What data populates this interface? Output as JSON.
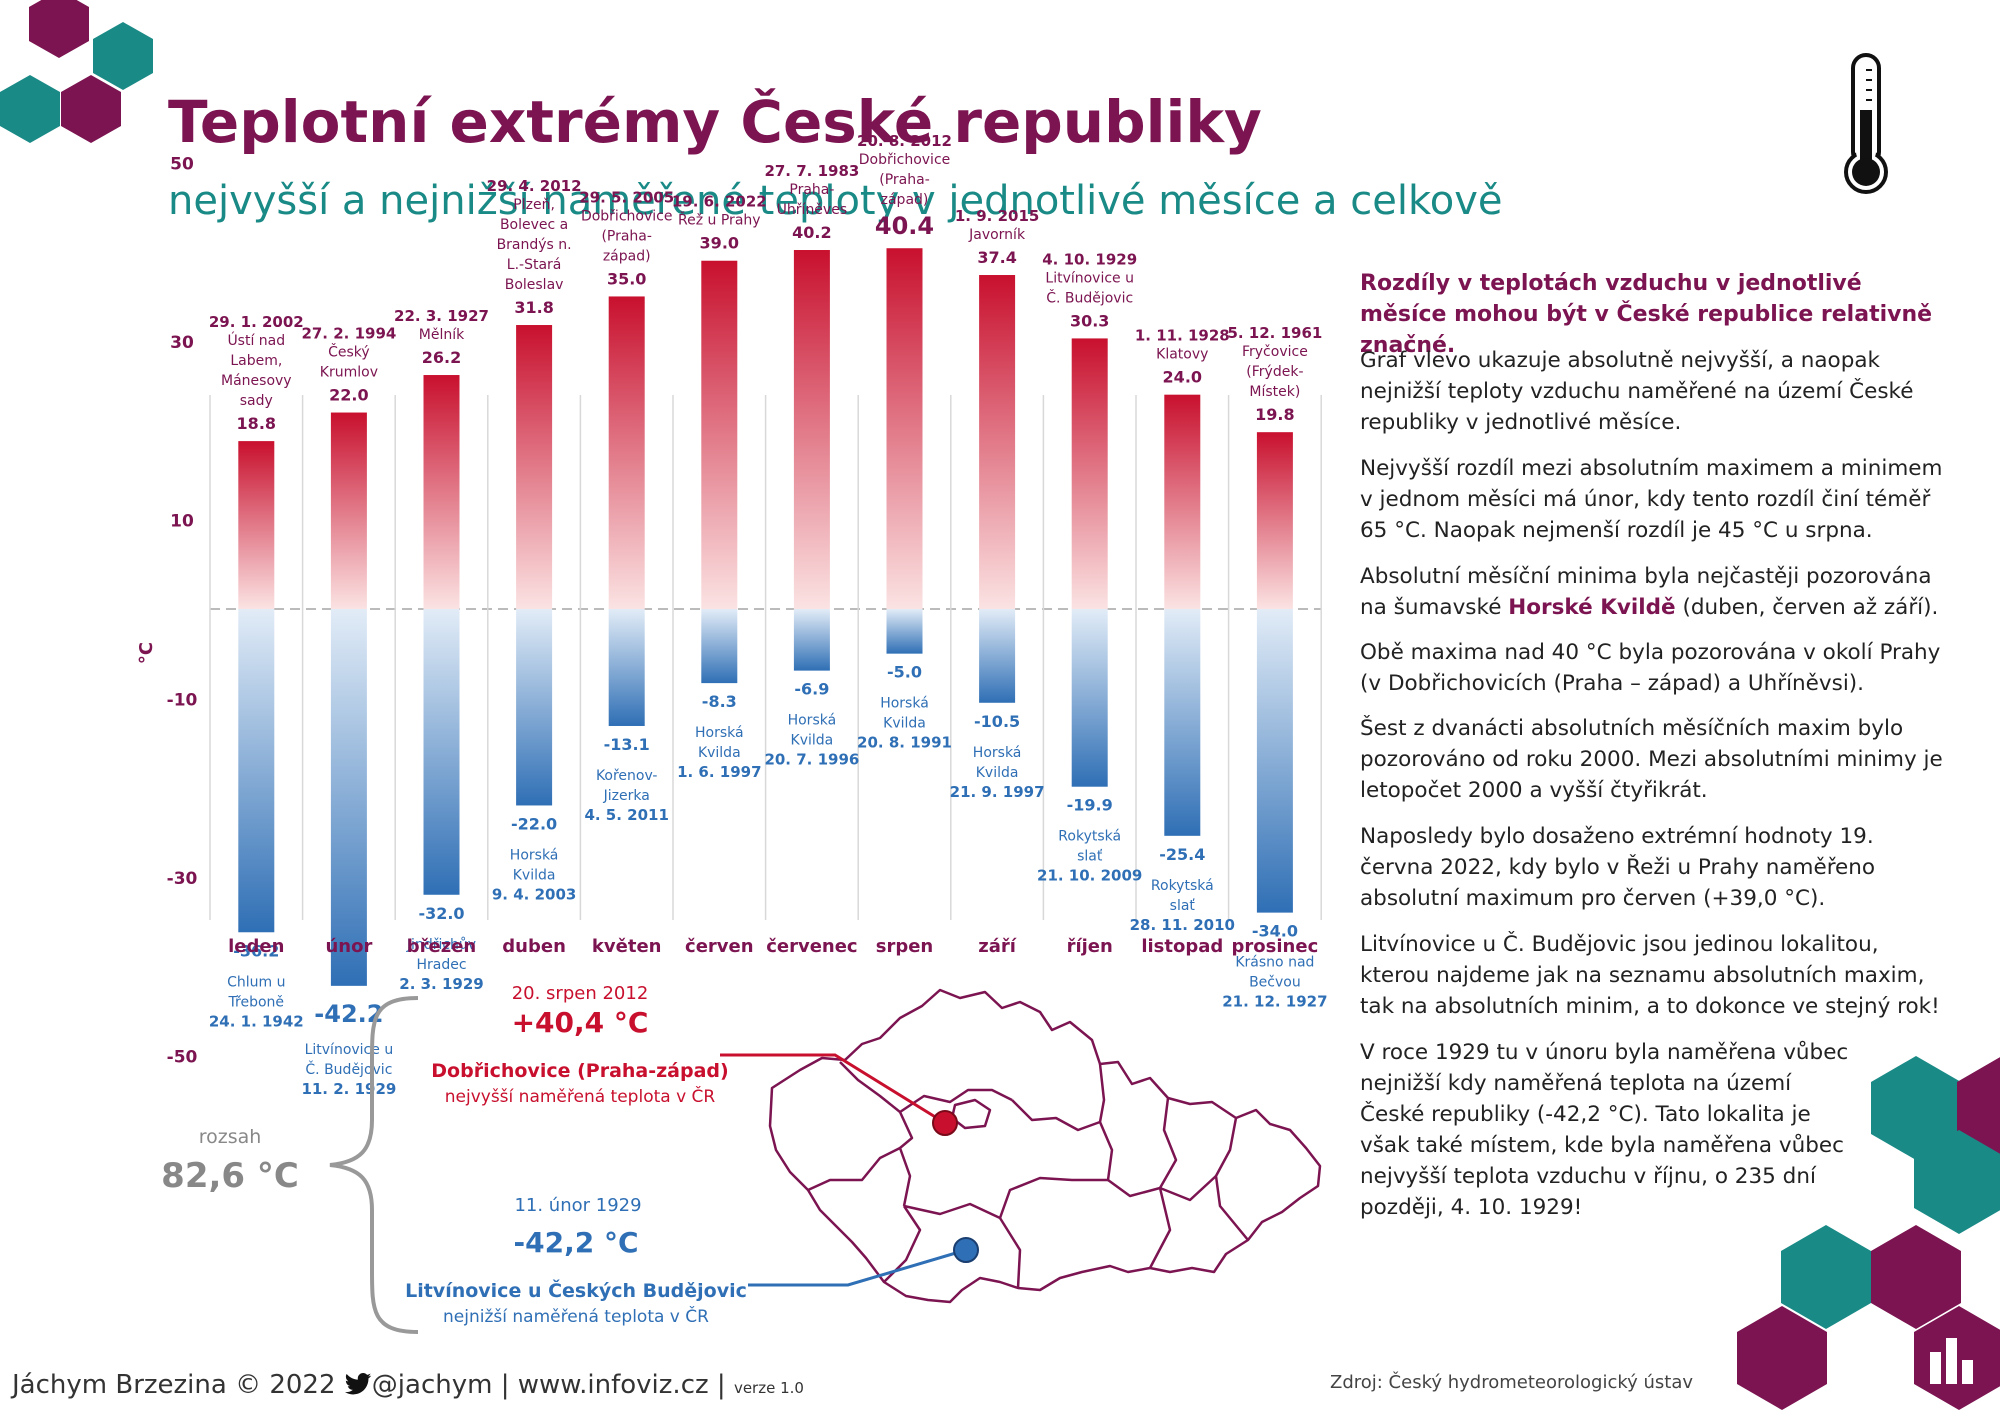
{
  "title": "Teplotní extrémy České republiky",
  "subtitle": "nejvyšší a nejnižší naměřené teploty v jednotlivé měsíce a celkově",
  "chart_data": {
    "type": "bar",
    "ylabel": "°C",
    "ylim": [
      -50,
      50
    ],
    "yticks": [
      50,
      30,
      10,
      -10,
      -30,
      -50
    ],
    "months": [
      {
        "name": "leden",
        "max": 18.8,
        "max_label": "18.8",
        "max_date": "29. 1. 2002",
        "max_place": [
          "Ústí nad",
          "Labem,",
          "Mánesovy",
          "sady"
        ],
        "min": -36.2,
        "min_label": "-36.2",
        "min_place": [
          "Chlum u",
          "Třeboně"
        ],
        "min_date": "24. 1. 1942"
      },
      {
        "name": "únor",
        "max": 22.0,
        "max_label": "22.0",
        "max_date": "27. 2. 1994",
        "max_place": [
          "Český",
          "Krumlov"
        ],
        "min": -42.2,
        "min_label": "-42.2",
        "min_place": [
          "Litvínovice u",
          "Č. Budějovic"
        ],
        "min_date": "11. 2. 1929"
      },
      {
        "name": "březen",
        "max": 26.2,
        "max_label": "26.2",
        "max_date": "22. 3. 1927",
        "max_place": [
          "Mělník"
        ],
        "min": -32.0,
        "min_label": "-32.0",
        "min_place": [
          "Jindřichův",
          "Hradec"
        ],
        "min_date": "2. 3. 1929"
      },
      {
        "name": "duben",
        "max": 31.8,
        "max_label": "31.8",
        "max_date": "29. 4. 2012",
        "max_place": [
          "Plzeň,",
          "Bolevec a",
          "Brandýs n.",
          "L.-Stará",
          "Boleslav"
        ],
        "min": -22.0,
        "min_label": "-22.0",
        "min_place": [
          "Horská",
          "Kvilda"
        ],
        "min_date": "9. 4. 2003"
      },
      {
        "name": "květen",
        "max": 35.0,
        "max_label": "35.0",
        "max_date": "29. 5. 2005",
        "max_place": [
          "Dobřichovice",
          "(Praha-",
          "západ)"
        ],
        "min": -13.1,
        "min_label": "-13.1",
        "min_place": [
          "Kořenov-",
          "Jizerka"
        ],
        "min_date": "4. 5. 2011"
      },
      {
        "name": "červen",
        "max": 39.0,
        "max_label": "39.0",
        "max_date": "19. 6. 2022",
        "max_place": [
          "Řež u Prahy"
        ],
        "min": -8.3,
        "min_label": "-8.3",
        "min_place": [
          "Horská",
          "Kvilda"
        ],
        "min_date": "1. 6. 1997"
      },
      {
        "name": "červenec",
        "max": 40.2,
        "max_label": "40.2",
        "max_date": "27. 7. 1983",
        "max_place": [
          "Praha-",
          "Uhříněves"
        ],
        "min": -6.9,
        "min_label": "-6.9",
        "min_place": [
          "Horská",
          "Kvilda"
        ],
        "min_date": "20. 7. 1996"
      },
      {
        "name": "srpen",
        "max": 40.4,
        "max_label": "40.4",
        "max_date": "20. 8. 2012",
        "max_place": [
          "Dobřichovice",
          "(Praha-",
          "západ)"
        ],
        "min": -5.0,
        "min_label": "-5.0",
        "min_place": [
          "Horská",
          "Kvilda"
        ],
        "min_date": "20. 8. 1991"
      },
      {
        "name": "září",
        "max": 37.4,
        "max_label": "37.4",
        "max_date": "1. 9. 2015",
        "max_place": [
          "Javorník"
        ],
        "min": -10.5,
        "min_label": "-10.5",
        "min_place": [
          "Horská",
          "Kvilda"
        ],
        "min_date": "21. 9. 1997"
      },
      {
        "name": "říjen",
        "max": 30.3,
        "max_label": "30.3",
        "max_date": "4. 10. 1929",
        "max_place": [
          "Litvínovice u",
          "Č. Budějovic"
        ],
        "min": -19.9,
        "min_label": "-19.9",
        "min_place": [
          "Rokytská",
          "slať"
        ],
        "min_date": "21. 10. 2009"
      },
      {
        "name": "listopad",
        "max": 24.0,
        "max_label": "24.0",
        "max_date": "1. 11. 1928",
        "max_place": [
          "Klatovy"
        ],
        "min": -25.4,
        "min_label": "-25.4",
        "min_place": [
          "Rokytská",
          "slať"
        ],
        "min_date": "28. 11. 2010"
      },
      {
        "name": "prosinec",
        "max": 19.8,
        "max_label": "19.8",
        "max_date": "5. 12. 1961",
        "max_place": [
          "Fryčovice",
          "(Frýdek-",
          "Místek)"
        ],
        "min": -34.0,
        "min_label": "-34.0",
        "min_place": [
          "Krásno nad",
          "Bečvou"
        ],
        "min_date": "21. 12. 1927"
      }
    ]
  },
  "summary": {
    "range_label": "rozsah",
    "range_value": "82,6 °C",
    "max_date": "20. srpen 2012",
    "max_value": "+40,4 °C",
    "max_place": "Dobřichovice (Praha-západ)",
    "max_desc": "nejvyšší naměřená teplota v ČR",
    "min_date": "11. únor 1929",
    "min_value": "-42,2 °C",
    "min_place": "Litvínovice u Českých Budějovic",
    "min_desc": "nejnižší naměřená teplota v ČR"
  },
  "text": {
    "intro": "Rozdíly v teplotách vzduchu v jednotlivé měsíce mohou být v České republice relativně značné.",
    "p1": "Graf vlevo ukazuje absolutně nejvyšší, a naopak nejnižší teploty vzduchu naměřené na území České republiky v jednotlivé měsíce.",
    "p2": "Nejvyšší rozdíl mezi absolutním maximem a minimem v jednom měsíci má únor, kdy tento rozdíl činí téměř 65 °C. Naopak nejmenší rozdíl je 45 °C u srpna.",
    "p3_a": "Absolutní měsíční minima byla nejčastěji pozorována na šumavské ",
    "p3_b": "Horské Kvildě",
    "p3_c": " (duben, červen až září).",
    "p4": "Obě maxima nad 40 °C byla pozorována v okolí Prahy (v Dobřichovicích (Praha – západ) a Uhříněvsi).",
    "p5": "Šest z dvanácti absolutních měsíčních maxim bylo pozorováno od roku 2000. Mezi absolutními minimy je letopočet 2000 a vyšší čtyřikrát.",
    "p6": "Naposledy bylo dosaženo extrémní hodnoty 19. června 2022, kdy bylo v Řeži u Prahy naměřeno absolutní maximum pro červen (+39,0 °C).",
    "p7": "Litvínovice u Č. Budějovic jsou jedinou lokalitou, kterou najdeme jak na seznamu absolutních maxim, tak na absolutních minim, a to dokonce ve stejný rok!",
    "p8": "V roce 1929 tu v únoru byla naměřena vůbec nejnižší kdy naměřená teplota na území České republiky (-42,2 °C). Tato lokalita je však také místem, kde byla naměřena vůbec nejvyšší teplota vzduchu v říjnu, o 235 dní později, 4. 10. 1929!"
  },
  "footer": {
    "author": "Jáchym Brzezina © 2022",
    "twitter": "@jachym",
    "sep": "|",
    "website": "www.infoviz.cz",
    "version": "verze 1.0",
    "source": "Zdroj: Český hydrometeorologický ústav"
  },
  "colors": {
    "purple": "#7b1450",
    "teal": "#1a8a86",
    "hot": "#c8102e",
    "cold": "#2f6fb5",
    "grey": "#888888"
  }
}
